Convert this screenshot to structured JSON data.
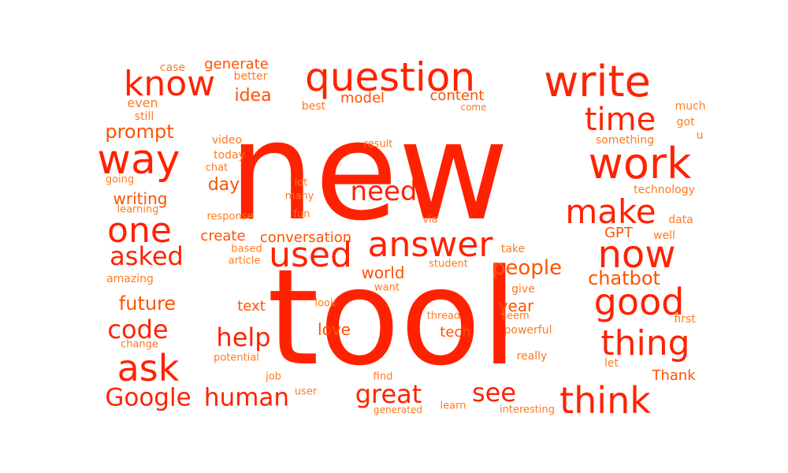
{
  "colors": {
    "background": "#ffffff",
    "primary": "#ff2200",
    "secondary": "#ff5200",
    "tertiary": "#ff7a1e"
  },
  "words": [
    {
      "text": "new",
      "tone": "primary"
    },
    {
      "text": "tool",
      "tone": "primary"
    },
    {
      "text": "question",
      "tone": "primary"
    },
    {
      "text": "write",
      "tone": "primary"
    },
    {
      "text": "know",
      "tone": "primary"
    },
    {
      "text": "work",
      "tone": "primary"
    },
    {
      "text": "way",
      "tone": "primary"
    },
    {
      "text": "time",
      "tone": "primary"
    },
    {
      "text": "answer",
      "tone": "primary"
    },
    {
      "text": "used",
      "tone": "primary"
    },
    {
      "text": "one",
      "tone": "primary"
    },
    {
      "text": "make",
      "tone": "primary"
    },
    {
      "text": "now",
      "tone": "primary"
    },
    {
      "text": "good",
      "tone": "primary"
    },
    {
      "text": "thing",
      "tone": "primary"
    },
    {
      "text": "ask",
      "tone": "primary"
    },
    {
      "text": "think",
      "tone": "primary"
    },
    {
      "text": "need",
      "tone": "primary"
    },
    {
      "text": "Google",
      "tone": "primary"
    },
    {
      "text": "human",
      "tone": "primary"
    },
    {
      "text": "great",
      "tone": "primary"
    },
    {
      "text": "code",
      "tone": "primary"
    },
    {
      "text": "help",
      "tone": "primary"
    },
    {
      "text": "see",
      "tone": "primary"
    },
    {
      "text": "asked",
      "tone": "primary"
    },
    {
      "text": "people",
      "tone": "secondary"
    },
    {
      "text": "chatbot",
      "tone": "secondary"
    },
    {
      "text": "future",
      "tone": "secondary"
    },
    {
      "text": "prompt",
      "tone": "secondary"
    },
    {
      "text": "writing",
      "tone": "secondary"
    },
    {
      "text": "day",
      "tone": "secondary"
    },
    {
      "text": "idea",
      "tone": "secondary"
    },
    {
      "text": "generate",
      "tone": "secondary"
    },
    {
      "text": "content",
      "tone": "secondary"
    },
    {
      "text": "model",
      "tone": "secondary"
    },
    {
      "text": "create",
      "tone": "secondary"
    },
    {
      "text": "conversation",
      "tone": "secondary"
    },
    {
      "text": "world",
      "tone": "secondary"
    },
    {
      "text": "year",
      "tone": "secondary"
    },
    {
      "text": "text",
      "tone": "secondary"
    },
    {
      "text": "love",
      "tone": "secondary"
    },
    {
      "text": "tech",
      "tone": "secondary"
    },
    {
      "text": "GPT",
      "tone": "secondary"
    },
    {
      "text": "Thank",
      "tone": "secondary"
    },
    {
      "text": "something",
      "tone": "tertiary"
    },
    {
      "text": "technology",
      "tone": "tertiary"
    },
    {
      "text": "even",
      "tone": "tertiary"
    },
    {
      "text": "still",
      "tone": "tertiary"
    },
    {
      "text": "case",
      "tone": "tertiary"
    },
    {
      "text": "better",
      "tone": "tertiary"
    },
    {
      "text": "best",
      "tone": "tertiary"
    },
    {
      "text": "come",
      "tone": "tertiary"
    },
    {
      "text": "much",
      "tone": "tertiary"
    },
    {
      "text": "got",
      "tone": "tertiary"
    },
    {
      "text": "u",
      "tone": "tertiary"
    },
    {
      "text": "video",
      "tone": "tertiary"
    },
    {
      "text": "today",
      "tone": "tertiary"
    },
    {
      "text": "chat",
      "tone": "tertiary"
    },
    {
      "text": "result",
      "tone": "tertiary"
    },
    {
      "text": "going",
      "tone": "tertiary"
    },
    {
      "text": "lot",
      "tone": "tertiary"
    },
    {
      "text": "many",
      "tone": "tertiary"
    },
    {
      "text": "learning",
      "tone": "tertiary"
    },
    {
      "text": "response",
      "tone": "tertiary"
    },
    {
      "text": "fun",
      "tone": "tertiary"
    },
    {
      "text": "via",
      "tone": "tertiary"
    },
    {
      "text": "data",
      "tone": "tertiary"
    },
    {
      "text": "well",
      "tone": "tertiary"
    },
    {
      "text": "based",
      "tone": "tertiary"
    },
    {
      "text": "article",
      "tone": "tertiary"
    },
    {
      "text": "take",
      "tone": "tertiary"
    },
    {
      "text": "student",
      "tone": "tertiary"
    },
    {
      "text": "amazing",
      "tone": "tertiary"
    },
    {
      "text": "want",
      "tone": "tertiary"
    },
    {
      "text": "give",
      "tone": "tertiary"
    },
    {
      "text": "look",
      "tone": "tertiary"
    },
    {
      "text": "thread",
      "tone": "tertiary"
    },
    {
      "text": "seem",
      "tone": "tertiary"
    },
    {
      "text": "first",
      "tone": "tertiary"
    },
    {
      "text": "powerful",
      "tone": "tertiary"
    },
    {
      "text": "change",
      "tone": "tertiary"
    },
    {
      "text": "potential",
      "tone": "tertiary"
    },
    {
      "text": "really",
      "tone": "tertiary"
    },
    {
      "text": "let",
      "tone": "tertiary"
    },
    {
      "text": "job",
      "tone": "tertiary"
    },
    {
      "text": "find",
      "tone": "tertiary"
    },
    {
      "text": "user",
      "tone": "tertiary"
    },
    {
      "text": "generated",
      "tone": "tertiary"
    },
    {
      "text": "learn",
      "tone": "tertiary"
    },
    {
      "text": "interesting",
      "tone": "tertiary"
    }
  ]
}
